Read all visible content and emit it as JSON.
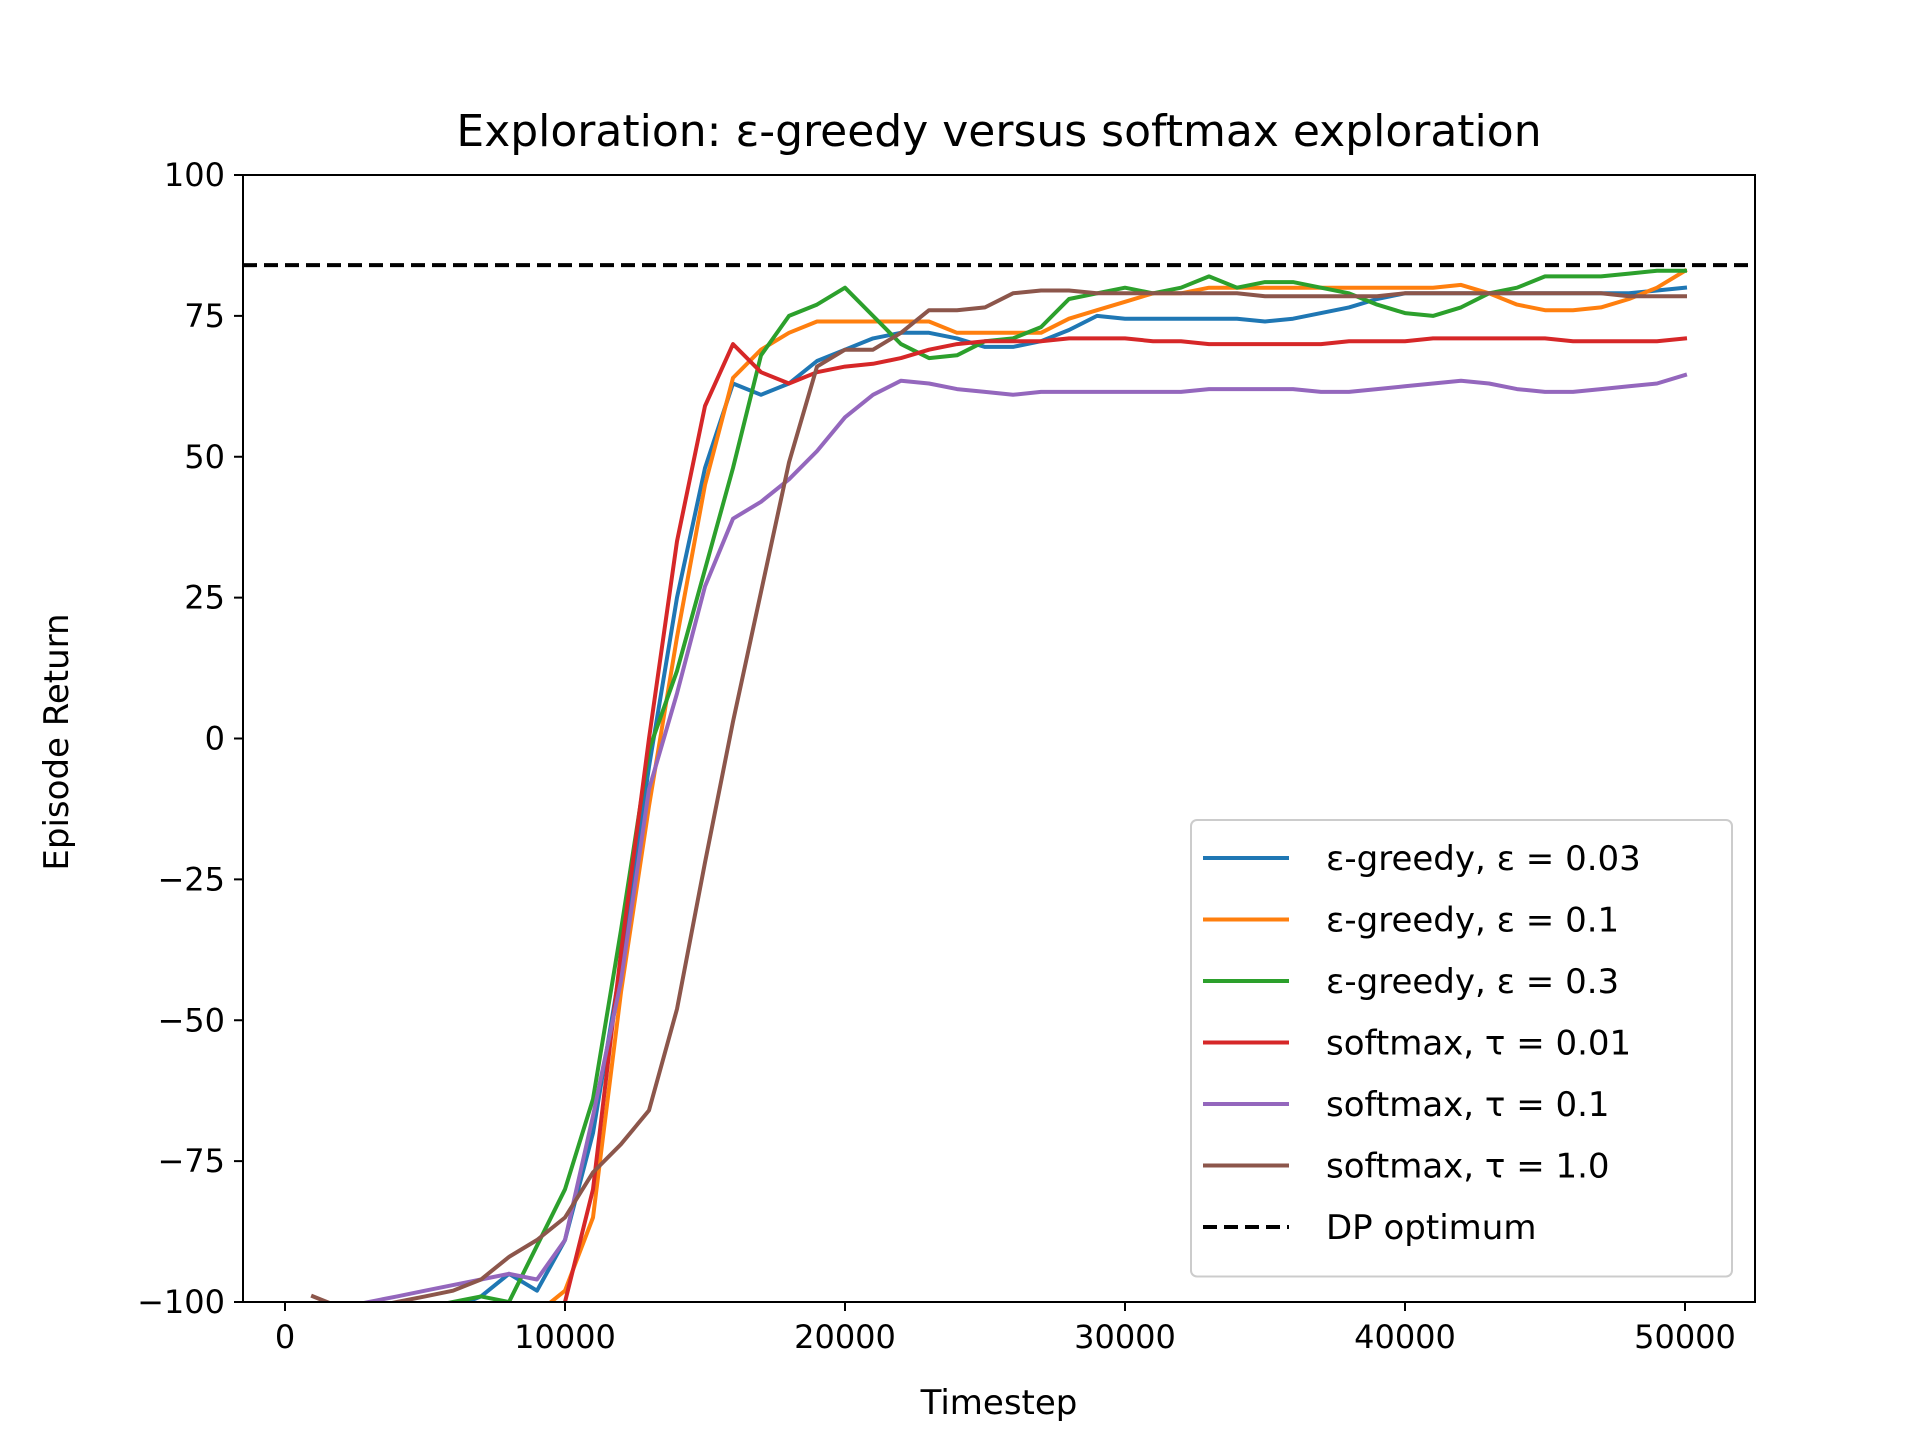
{
  "chart_data": {
    "type": "line",
    "title": "Exploration: ε-greedy versus softmax exploration",
    "xlabel": "Timestep",
    "ylabel": "Episode Return",
    "xlim": [
      -1500,
      52500
    ],
    "ylim": [
      -100,
      100
    ],
    "xticks": [
      0,
      10000,
      20000,
      30000,
      40000,
      50000
    ],
    "yticks": [
      -100,
      -75,
      -50,
      -25,
      0,
      25,
      50,
      75,
      100
    ],
    "xtick_labels": [
      "0",
      "10000",
      "20000",
      "30000",
      "40000",
      "50000"
    ],
    "ytick_labels": [
      "−100",
      "−75",
      "−50",
      "−25",
      "0",
      "25",
      "50",
      "75",
      "100"
    ],
    "grid": false,
    "legend_position": "lower-right",
    "reference_line": {
      "name": "DP optimum",
      "y": 84,
      "color": "#000000",
      "style": "dashed"
    },
    "x": [
      1000,
      2000,
      3000,
      4000,
      5000,
      6000,
      7000,
      8000,
      9000,
      10000,
      11000,
      12000,
      13000,
      14000,
      15000,
      16000,
      17000,
      18000,
      19000,
      20000,
      21000,
      22000,
      23000,
      24000,
      25000,
      26000,
      27000,
      28000,
      29000,
      30000,
      31000,
      32000,
      33000,
      34000,
      35000,
      36000,
      37000,
      38000,
      39000,
      40000,
      41000,
      42000,
      43000,
      44000,
      45000,
      46000,
      47000,
      48000,
      49000,
      50000
    ],
    "series": [
      {
        "name": "ε-greedy, ε = 0.03",
        "color": "#1f77b4",
        "values": [
          -102,
          -104,
          -103,
          -102,
          -102,
          -101,
          -99,
          -95,
          -98,
          -89,
          -70,
          -40,
          -5,
          25,
          48,
          63,
          61,
          63,
          67,
          69,
          71,
          72,
          72,
          71,
          69.5,
          69.5,
          70.5,
          72.5,
          75,
          74.5,
          74.5,
          74.5,
          74.5,
          74.5,
          74,
          74.5,
          75.5,
          76.5,
          78,
          79,
          79,
          79,
          79,
          79,
          79,
          79,
          79,
          79,
          79.5,
          80
        ]
      },
      {
        "name": "ε-greedy, ε = 0.1",
        "color": "#ff7f0e",
        "values": [
          -108,
          -109,
          -109,
          -108,
          -107,
          -106,
          -106,
          -105,
          -102,
          -98,
          -85,
          -45,
          -12,
          18,
          45,
          64,
          69,
          72,
          74,
          74,
          74,
          74,
          74,
          72,
          72,
          72,
          72,
          74.5,
          76,
          77.5,
          79,
          79,
          80,
          80,
          80,
          80,
          80,
          80,
          80,
          80,
          80,
          80.5,
          79,
          77,
          76,
          76,
          76.5,
          78,
          80,
          83
        ]
      },
      {
        "name": "ε-greedy, ε = 0.3",
        "color": "#2ca02c",
        "values": [
          -104,
          -104,
          -103,
          -102,
          -101,
          -100,
          -99,
          -100,
          -90,
          -80,
          -64,
          -34,
          -2,
          12,
          30,
          48,
          68,
          75,
          77,
          80,
          75,
          70,
          67.5,
          68,
          70.5,
          71,
          73,
          78,
          79,
          80,
          79,
          80,
          82,
          80,
          81,
          81,
          80,
          79,
          77,
          75.5,
          75,
          76.5,
          79,
          80,
          82,
          82,
          82,
          82.5,
          83,
          83
        ]
      },
      {
        "name": "softmax, τ = 0.01",
        "color": "#d62728",
        "values": [
          -110,
          -110,
          -109,
          -108,
          -106,
          -104,
          -103,
          -104,
          -102,
          -100,
          -80,
          -38,
          0,
          35,
          59,
          70,
          65,
          63,
          65,
          66,
          66.5,
          67.5,
          69,
          70,
          70.5,
          70.5,
          70.5,
          71,
          71,
          71,
          70.5,
          70.5,
          70,
          70,
          70,
          70,
          70,
          70.5,
          70.5,
          70.5,
          71,
          71,
          71,
          71,
          71,
          70.5,
          70.5,
          70.5,
          70.5,
          71
        ]
      },
      {
        "name": "softmax, τ = 0.1",
        "color": "#9467bd",
        "values": [
          -101,
          -101,
          -100,
          -99,
          -98,
          -97,
          -96,
          -95,
          -96,
          -89,
          -67,
          -43,
          -9,
          8,
          27,
          39,
          42,
          46,
          51,
          57,
          61,
          63.5,
          63,
          62,
          61.5,
          61,
          61.5,
          61.5,
          61.5,
          61.5,
          61.5,
          61.5,
          62,
          62,
          62,
          62,
          61.5,
          61.5,
          62,
          62.5,
          63,
          63.5,
          63,
          62,
          61.5,
          61.5,
          62,
          62.5,
          63,
          64.5
        ]
      },
      {
        "name": "softmax, τ = 1.0",
        "color": "#8c564b",
        "values": [
          -99,
          -101,
          -101,
          -100,
          -99,
          -98,
          -96,
          -92,
          -89,
          -85,
          -77,
          -72,
          -66,
          -48,
          -22,
          3,
          26,
          49,
          66,
          69,
          69,
          72,
          76,
          76,
          76.5,
          79,
          79.5,
          79.5,
          79,
          79,
          79,
          79,
          79,
          79,
          78.5,
          78.5,
          78.5,
          78.5,
          78.5,
          79,
          79,
          79,
          79,
          79,
          79,
          79,
          79,
          78.5,
          78.5,
          78.5
        ]
      }
    ]
  }
}
